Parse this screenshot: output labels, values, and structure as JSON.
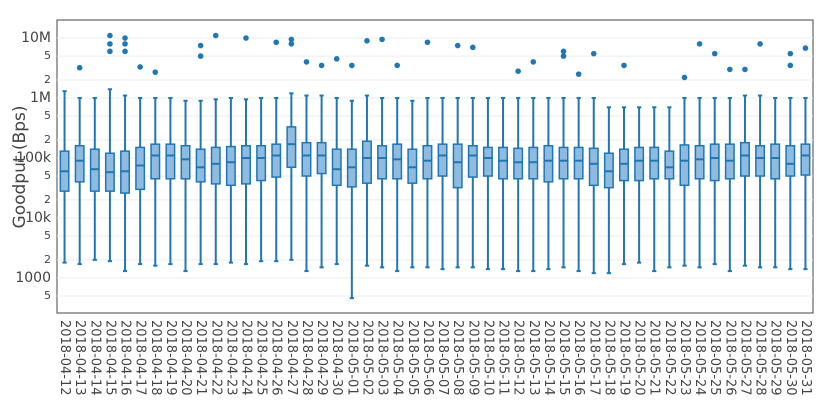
{
  "chart_data": {
    "type": "box",
    "y_label": "Goodput (Bps)",
    "log_scale": true,
    "grid": true,
    "color": "#1f77b4",
    "fill": "#8fbbe0",
    "ylim": [
      260,
      20000000
    ],
    "yticks": [
      {
        "value": 500,
        "label": "5"
      },
      1000,
      {
        "value": 2000,
        "label": "2"
      },
      {
        "value": 5000,
        "label": "5"
      },
      {
        "value": 10000,
        "label": "10k"
      },
      {
        "value": 20000,
        "label": "2"
      },
      {
        "value": 50000,
        "label": "5"
      },
      {
        "value": 100000,
        "label": "100k"
      },
      {
        "value": 200000,
        "label": "2"
      },
      {
        "value": 500000,
        "label": "5"
      },
      {
        "value": 1000000,
        "label": "1M"
      },
      {
        "value": 2000000,
        "label": "2"
      },
      {
        "value": 5000000,
        "label": "5"
      },
      {
        "value": 10000000,
        "label": "10M"
      }
    ],
    "categories": [
      "2018-04-12",
      "2018-04-13",
      "2018-04-14",
      "2018-04-15",
      "2018-04-16",
      "2018-04-17",
      "2018-04-18",
      "2018-04-19",
      "2018-04-20",
      "2018-04-21",
      "2018-04-22",
      "2018-04-23",
      "2018-04-24",
      "2018-04-25",
      "2018-04-26",
      "2018-04-27",
      "2018-04-28",
      "2018-04-29",
      "2018-04-30",
      "2018-05-01",
      "2018-05-02",
      "2018-05-03",
      "2018-05-04",
      "2018-05-05",
      "2018-05-06",
      "2018-05-07",
      "2018-05-08",
      "2018-05-09",
      "2018-05-10",
      "2018-05-11",
      "2018-05-12",
      "2018-05-13",
      "2018-05-14",
      "2018-05-15",
      "2018-05-16",
      "2018-05-17",
      "2018-05-18",
      "2018-05-19",
      "2018-05-20",
      "2018-05-21",
      "2018-05-22",
      "2018-05-23",
      "2018-05-24",
      "2018-05-25",
      "2018-05-26",
      "2018-05-27",
      "2018-05-28",
      "2018-05-29",
      "2018-05-30",
      "2018-05-31"
    ],
    "low": [
      1800,
      1700,
      2000,
      1900,
      1300,
      1700,
      1600,
      1700,
      1300,
      1700,
      1700,
      1800,
      1700,
      1900,
      1900,
      2000,
      1300,
      1500,
      1700,
      460,
      1600,
      1500,
      1300,
      1500,
      1500,
      1400,
      1500,
      1500,
      1400,
      1400,
      1300,
      1300,
      1400,
      1500,
      1300,
      1200,
      1200,
      1700,
      1800,
      1300,
      1500,
      1600,
      1500,
      1700,
      1300,
      1600,
      1500,
      1500,
      1400,
      1400
    ],
    "q1": [
      28000,
      40000,
      28000,
      28000,
      26000,
      30000,
      45000,
      45000,
      45000,
      40000,
      37000,
      35000,
      37000,
      42000,
      48000,
      70000,
      50000,
      55000,
      35000,
      33000,
      38000,
      45000,
      45000,
      38000,
      45000,
      50000,
      32000,
      48000,
      50000,
      45000,
      45000,
      45000,
      40000,
      45000,
      45000,
      35000,
      32000,
      42000,
      42000,
      45000,
      45000,
      35000,
      45000,
      42000,
      45000,
      50000,
      50000,
      45000,
      50000,
      52000
    ],
    "median": [
      60000,
      90000,
      65000,
      58000,
      60000,
      75000,
      110000,
      110000,
      95000,
      70000,
      80000,
      85000,
      100000,
      100000,
      110000,
      170000,
      110000,
      110000,
      65000,
      70000,
      100000,
      100000,
      95000,
      70000,
      90000,
      110000,
      85000,
      110000,
      100000,
      90000,
      85000,
      85000,
      90000,
      90000,
      90000,
      80000,
      60000,
      80000,
      90000,
      90000,
      70000,
      90000,
      95000,
      100000,
      90000,
      110000,
      100000,
      100000,
      80000,
      110000
    ],
    "q3": [
      130000,
      160000,
      140000,
      120000,
      130000,
      150000,
      170000,
      170000,
      160000,
      140000,
      150000,
      155000,
      160000,
      160000,
      170000,
      330000,
      180000,
      180000,
      140000,
      140000,
      190000,
      160000,
      170000,
      140000,
      160000,
      170000,
      170000,
      160000,
      150000,
      150000,
      145000,
      150000,
      160000,
      150000,
      150000,
      145000,
      120000,
      140000,
      150000,
      150000,
      130000,
      165000,
      160000,
      170000,
      170000,
      180000,
      160000,
      170000,
      160000,
      170000
    ],
    "high": [
      1300000,
      1000000,
      1000000,
      1400000,
      1100000,
      1000000,
      1000000,
      1000000,
      900000,
      900000,
      950000,
      1000000,
      950000,
      1000000,
      1000000,
      1200000,
      1100000,
      1100000,
      1000000,
      900000,
      1100000,
      1000000,
      1000000,
      900000,
      1000000,
      1000000,
      1000000,
      1000000,
      1000000,
      1000000,
      1000000,
      1000000,
      1000000,
      1000000,
      1000000,
      1000000,
      700000,
      700000,
      700000,
      700000,
      700000,
      1000000,
      1000000,
      1000000,
      1000000,
      1100000,
      1100000,
      1000000,
      1000000,
      1000000
    ],
    "outliers": [
      [],
      [
        3200000
      ],
      [],
      [
        11000000,
        8000000,
        6000000
      ],
      [
        10000000,
        8000000,
        6000000
      ],
      [
        3300000
      ],
      [
        2700000
      ],
      [],
      [],
      [
        7500000,
        5000000
      ],
      [
        11000000
      ],
      [],
      [
        10000000
      ],
      [],
      [
        8500000
      ],
      [
        9500000,
        8000000
      ],
      [
        4000000
      ],
      [
        3500000
      ],
      [
        4500000
      ],
      [
        3500000
      ],
      [
        9000000
      ],
      [
        9500000
      ],
      [
        3500000
      ],
      [],
      [
        8500000
      ],
      [],
      [
        7500000
      ],
      [
        7000000
      ],
      [],
      [],
      [
        2800000
      ],
      [
        4000000
      ],
      [],
      [
        6000000,
        5000000
      ],
      [
        2500000
      ],
      [
        5500000
      ],
      [],
      [
        3500000
      ],
      [],
      [],
      [],
      [
        2200000
      ],
      [
        8000000
      ],
      [
        5500000
      ],
      [
        3000000
      ],
      [
        3000000
      ],
      [
        8000000
      ],
      [],
      [
        5500000,
        3500000
      ],
      [
        6800000
      ]
    ]
  }
}
